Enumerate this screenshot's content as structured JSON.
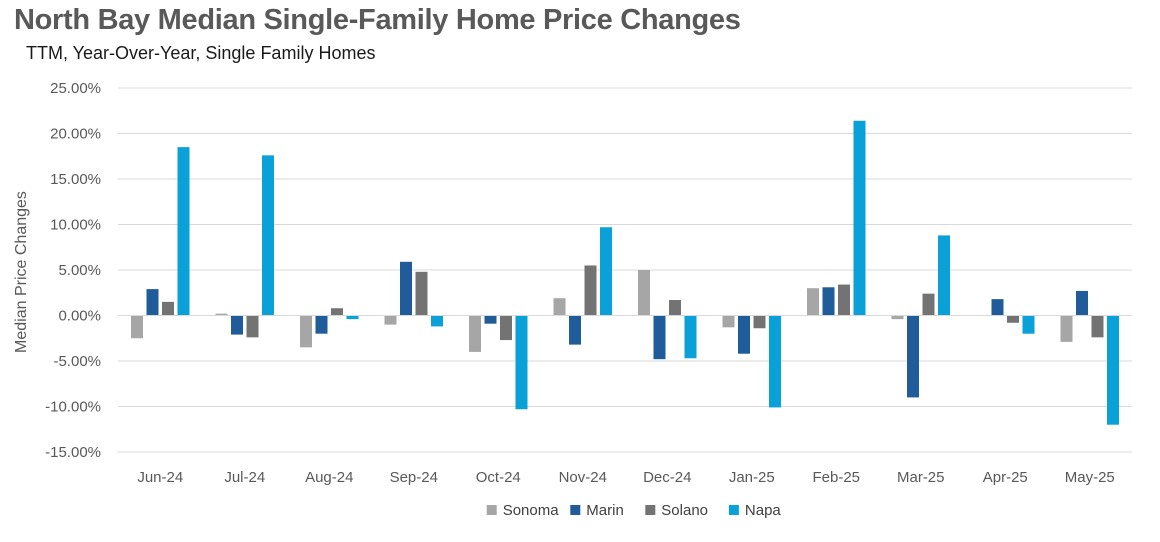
{
  "header": {
    "title": "North Bay Median Single-Family Home Price Changes",
    "subtitle": "TTM, Year-Over-Year, Single Family Homes"
  },
  "chart_data": {
    "type": "bar",
    "title": "North Bay Median Single-Family Home Price Changes",
    "subtitle": "TTM, Year-Over-Year, Single Family Homes",
    "xlabel": "",
    "ylabel": "Median Price Changes",
    "ylim": [
      -15,
      25
    ],
    "ytick_step": 5,
    "ytick_format": "percent_2dp",
    "grid": true,
    "legend_position": "bottom",
    "categories": [
      "Jun-24",
      "Jul-24",
      "Aug-24",
      "Sep-24",
      "Oct-24",
      "Nov-24",
      "Dec-24",
      "Jan-25",
      "Feb-25",
      "Mar-25",
      "Apr-25",
      "May-25"
    ],
    "series": [
      {
        "name": "Sonoma",
        "color": "#a6a6a6",
        "values": [
          -2.5,
          0.2,
          -3.5,
          -1.0,
          -4.0,
          1.9,
          5.0,
          -1.3,
          3.0,
          -0.4,
          0.0,
          -2.9
        ]
      },
      {
        "name": "Marin",
        "color": "#1f5c99",
        "values": [
          2.9,
          -2.1,
          -2.0,
          5.9,
          -0.9,
          -3.2,
          -4.8,
          -4.2,
          3.1,
          -9.0,
          1.8,
          2.7
        ]
      },
      {
        "name": "Solano",
        "color": "#737373",
        "values": [
          1.5,
          -2.4,
          0.8,
          4.8,
          -2.7,
          5.5,
          1.7,
          -1.4,
          3.4,
          2.4,
          -0.8,
          -2.4
        ]
      },
      {
        "name": "Napa",
        "color": "#0aa0d8",
        "values": [
          18.5,
          17.6,
          -0.4,
          -1.2,
          -10.3,
          9.7,
          -4.7,
          -10.1,
          21.4,
          8.8,
          -2.0,
          -12.0
        ]
      }
    ]
  }
}
